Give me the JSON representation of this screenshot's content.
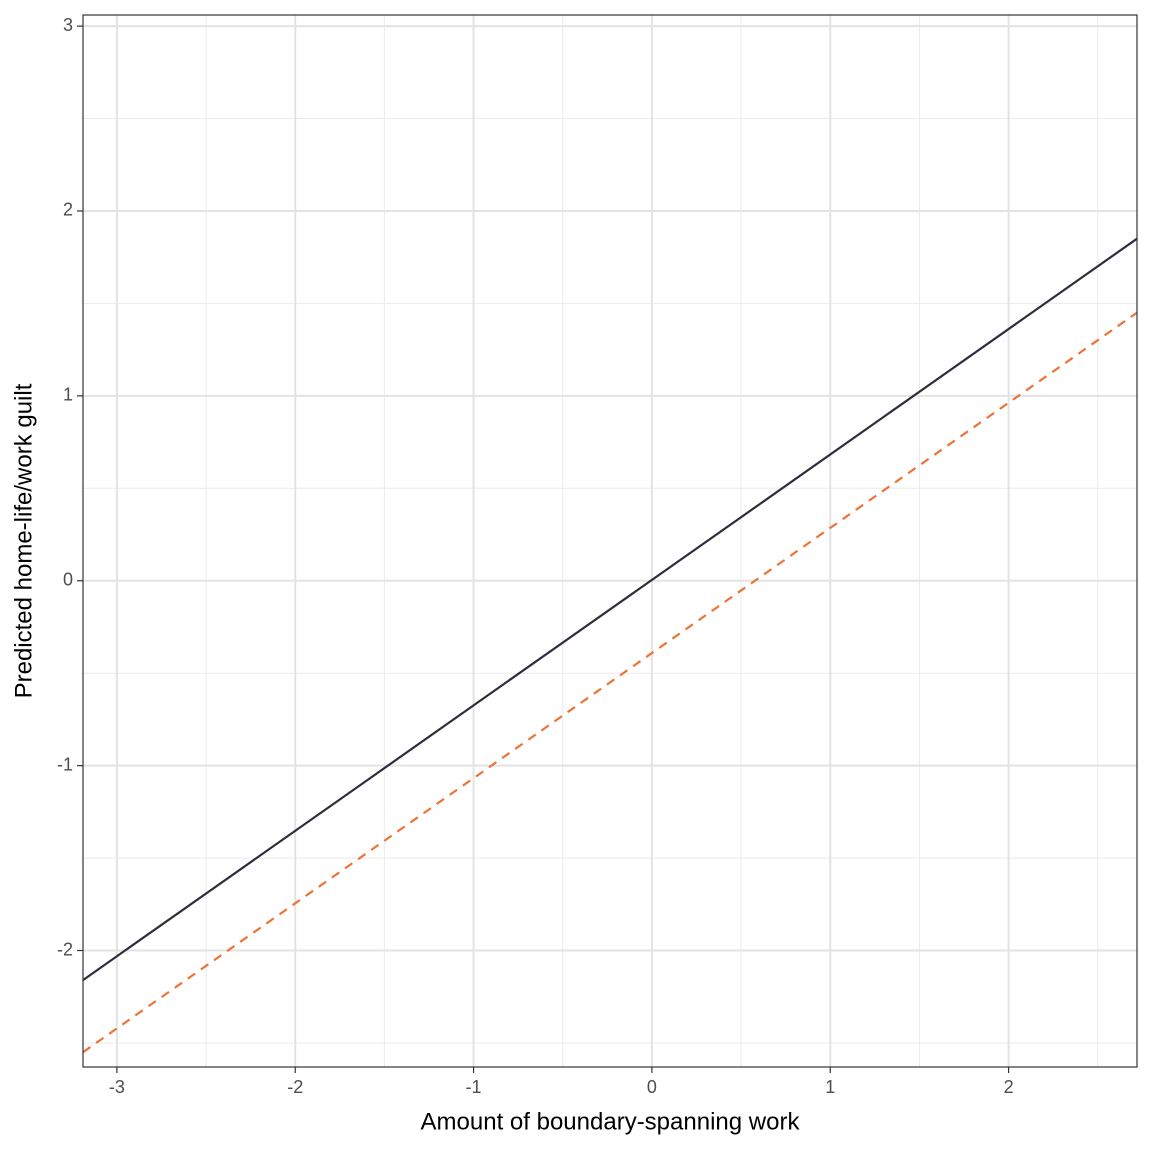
{
  "chart_data": {
    "type": "line",
    "x_label": "Amount of boundary-spanning work",
    "y_label": "Predicted home-life/work guilt",
    "x": [
      -3.19,
      2.72
    ],
    "series": [
      {
        "color": "#2e2d3b",
        "linestyle": "solid",
        "values": [
          -2.16,
          1.85
        ]
      },
      {
        "color": "#ec7437",
        "linestyle": "dashed",
        "values": [
          -2.55,
          1.45
        ]
      }
    ],
    "xlim": [
      -3.19,
      2.72
    ],
    "xticks": [
      -3,
      -2,
      -1,
      0,
      1,
      2
    ],
    "ylim": [
      -2.63,
      3.06
    ],
    "yticks": [
      -2,
      -1,
      0,
      1,
      2,
      3
    ],
    "grid": true,
    "minor_grid": true
  }
}
